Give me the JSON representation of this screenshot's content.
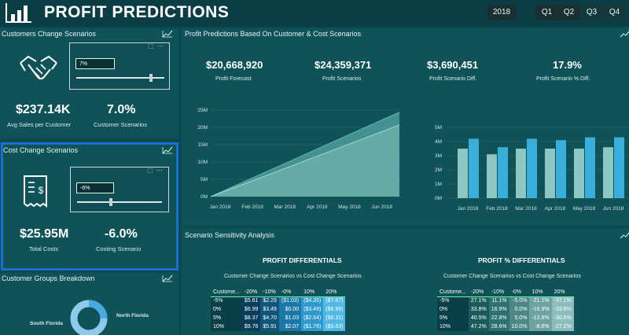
{
  "header": {
    "title": "PROFIT PREDICTIONS",
    "year": "2018",
    "quarters": [
      "Q1",
      "Q2",
      "Q3",
      "Q4"
    ]
  },
  "customers_panel": {
    "title": "Customers Change Scenarios",
    "slider_value": "7%",
    "slider_level": 0.85,
    "kpi1_value": "$237.14K",
    "kpi1_label": "Avg Sales per Customer",
    "kpi2_value": "7.0%",
    "kpi2_label": "Customer Scenarios"
  },
  "cost_panel": {
    "title": "Cost Change Scenarios",
    "slider_value": "-6%",
    "slider_level": 0.4,
    "kpi1_value": "$25.95M",
    "kpi1_label": "Total Costs",
    "kpi2_value": "-6.0%",
    "kpi2_label": "Costing Scenario"
  },
  "groups_panel": {
    "title": "Customer Groups Breakdown",
    "label_left": "South Florida",
    "label_right": "North Florida"
  },
  "profit_panel": {
    "title": "Profit Predictions Based On Customer & Cost Scenarios",
    "kpis": [
      {
        "value": "$20,668,920",
        "label": "Profit Forecast"
      },
      {
        "value": "$24,359,371",
        "label": "Profit Scenarios"
      },
      {
        "value": "$3,690,451",
        "label": "Profit Scenario Diff."
      },
      {
        "value": "17.9%",
        "label": "Profit Scenario % Diff."
      }
    ]
  },
  "chart_data": [
    {
      "type": "area",
      "y_ticks": [
        "0M",
        "5M",
        "10M",
        "15M",
        "20M",
        "25M"
      ],
      "x_ticks": [
        "Jan 2018",
        "Feb 2018",
        "Mar 2018",
        "Apr 2018",
        "May 2018",
        "Jun 2018"
      ],
      "ylim": [
        0,
        25
      ],
      "series": [
        {
          "color": "#5fb5b0",
          "x": [
            0,
            6
          ],
          "y": [
            0,
            24.4
          ]
        },
        {
          "color": "#a9d6d2",
          "x": [
            0,
            6
          ],
          "y": [
            0,
            20.7
          ]
        }
      ]
    },
    {
      "type": "bar",
      "y_ticks": [
        "0M",
        "1M",
        "2M",
        "3M",
        "4M",
        "5M"
      ],
      "categories": [
        "Jan 2018",
        "Feb 2018",
        "Mar 2018",
        "Apr 2018",
        "May 2018",
        "Jun 2018"
      ],
      "x_ticks": [
        "Jan 2018",
        "Feb 2018",
        "Mar 2018",
        "Apr 2018",
        "May 2018",
        "Jun 2018"
      ],
      "ylim": [
        0,
        5
      ],
      "series": [
        {
          "color": "#8cc7c3",
          "values": [
            3.5,
            3.1,
            3.5,
            3.5,
            3.5,
            3.6
          ]
        },
        {
          "color": "#3aaedb",
          "values": [
            4.2,
            3.6,
            4.2,
            4.1,
            4.3,
            4.3
          ]
        }
      ]
    }
  ],
  "sensitivity": {
    "title": "Scenario Sensitivity Analysis",
    "left": {
      "title": "PROFIT DIFFERENTIALS",
      "subtitle": "Customer Change Scenarios vs Cost Change Scenarios",
      "corner": "Custome...",
      "columns": [
        "-20%",
        "-10%",
        "-0%",
        "10%",
        "20%"
      ],
      "rows": [
        {
          "label": "-5%",
          "cells": [
            "$5.61",
            "$2.29",
            "($1.03)",
            "($4.35)",
            "($7.67)"
          ]
        },
        {
          "label": "0%",
          "cells": [
            "$6.99",
            "$3.49",
            "$0.00",
            "($3.49)",
            "($6.99)"
          ]
        },
        {
          "label": "5%",
          "cells": [
            "$8.37",
            "$4.70",
            "$1.03",
            "($2.64)",
            "($6.31)"
          ]
        },
        {
          "label": "10%",
          "cells": [
            "$9.76",
            "$5.91",
            "$2.07",
            "($1.78)",
            "($5.63)"
          ]
        }
      ]
    },
    "right": {
      "title": "PROFIT % DIFFERENTIALS",
      "subtitle": "Customer Change Scenarios vs Cost Change Scenarios",
      "corner": "Custome...",
      "columns": [
        "-20%",
        "-10%",
        "-0%",
        "10%",
        "20%"
      ],
      "rows": [
        {
          "label": "-5%",
          "cells": [
            "27.1%",
            "11.1%",
            "-5.0%",
            "-21.1%",
            "-37.1%"
          ]
        },
        {
          "label": "0%",
          "cells": [
            "33.8%",
            "16.9%",
            "0.0%",
            "-16.9%",
            "-33.8%"
          ]
        },
        {
          "label": "5%",
          "cells": [
            "40.5%",
            "22.8%",
            "5.0%",
            "-12.8%",
            "-30.5%"
          ]
        },
        {
          "label": "10%",
          "cells": [
            "47.2%",
            "28.6%",
            "10.0%",
            "-8.6%",
            "-27.2%"
          ]
        }
      ]
    }
  }
}
